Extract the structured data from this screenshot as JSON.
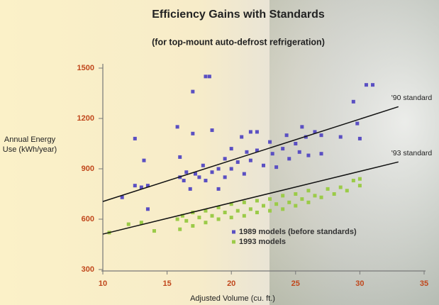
{
  "chart_data": {
    "type": "scatter",
    "title": "Efficiency Gains with Standards",
    "subtitle": "(for top-mount auto-defrost refrigeration)",
    "x_label": "Adjusted Volume (cu. ft.)",
    "y_label": "Annual Energy Use (kWh/year)",
    "xlim": [
      10,
      35
    ],
    "xticks": [
      10,
      15,
      20,
      25,
      30,
      35
    ],
    "ylim": [
      300,
      1500
    ],
    "yticks": [
      300,
      600,
      900,
      1200,
      1500
    ],
    "series": [
      {
        "name": "1989 models (before standards)",
        "color": "#5a4fc2",
        "x": [
          11.5,
          12.5,
          12.5,
          13,
          13.2,
          13.5,
          13.5,
          15.8,
          16,
          16,
          16.3,
          16.5,
          16.8,
          17,
          17,
          17.2,
          17.5,
          17.8,
          18,
          18.3,
          18,
          18.5,
          18.5,
          19,
          19,
          19.5,
          19.5,
          20,
          20,
          20.5,
          20.8,
          21,
          21.2,
          21.5,
          21.5,
          22,
          22,
          22.5,
          23,
          23.2,
          23.5,
          24,
          24.3,
          24.5,
          25,
          25.3,
          25.5,
          25.8,
          26,
          26.5,
          27,
          27,
          28.5,
          29.5,
          29.8,
          30,
          30.5,
          31
        ],
        "values": [
          730,
          1080,
          800,
          790,
          950,
          660,
          800,
          1150,
          970,
          850,
          830,
          880,
          780,
          1360,
          1110,
          870,
          850,
          920,
          1450,
          1450,
          830,
          1130,
          880,
          900,
          780,
          960,
          850,
          1020,
          900,
          940,
          1090,
          870,
          1000,
          1120,
          950,
          1120,
          1010,
          920,
          1060,
          990,
          910,
          1020,
          1100,
          960,
          1050,
          1000,
          1150,
          1090,
          980,
          1120,
          1100,
          990,
          1090,
          1300,
          1170,
          1080,
          1400,
          1400
        ]
      },
      {
        "name": "1993 models",
        "color": "#9bcb48",
        "x": [
          10.5,
          12,
          13,
          14,
          15.8,
          16,
          16.2,
          16.5,
          17,
          17,
          17.5,
          18,
          18,
          18.5,
          19,
          19,
          19.5,
          20,
          20,
          20.5,
          21,
          21,
          21.5,
          22,
          22,
          22.5,
          23,
          23,
          23.5,
          24,
          24,
          24.5,
          25,
          25,
          25.5,
          26,
          26,
          26.5,
          27,
          27.5,
          28,
          28.5,
          29,
          29.5,
          30,
          30
        ],
        "values": [
          520,
          570,
          580,
          530,
          600,
          540,
          620,
          590,
          560,
          640,
          610,
          580,
          650,
          620,
          600,
          670,
          640,
          610,
          690,
          650,
          620,
          700,
          660,
          640,
          710,
          680,
          650,
          720,
          690,
          660,
          740,
          700,
          680,
          750,
          720,
          700,
          770,
          740,
          730,
          780,
          750,
          790,
          770,
          830,
          800,
          840
        ]
      }
    ],
    "lines": [
      {
        "name": "'90 standard",
        "color": "#111",
        "x": [
          10,
          33
        ],
        "values": [
          705,
          1270
        ]
      },
      {
        "name": "'93 standard",
        "color": "#111",
        "x": [
          10,
          33
        ],
        "values": [
          511,
          941
        ]
      }
    ]
  }
}
